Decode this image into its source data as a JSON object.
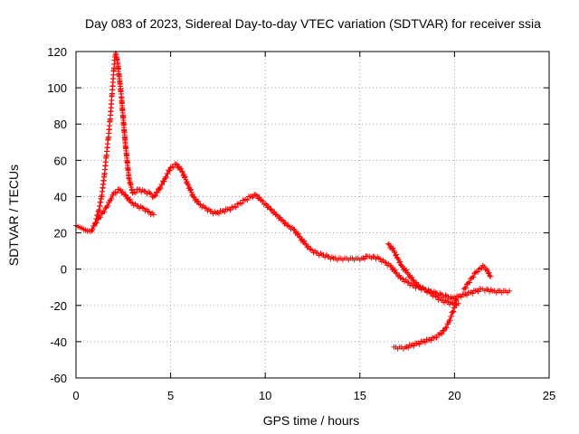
{
  "chart_data": {
    "type": "scatter",
    "title": "Day 083 of 2023, Sidereal Day-to-day VTEC variation (SDTVAR) for receiver ssia",
    "xlabel": "GPS time / hours",
    "ylabel": "SDTVAR / TECUs",
    "xlim": [
      0,
      25
    ],
    "ylim": [
      -60,
      120
    ],
    "xticks": [
      0,
      5,
      10,
      15,
      20,
      25
    ],
    "yticks": [
      -60,
      -40,
      -20,
      0,
      20,
      40,
      60,
      80,
      100,
      120
    ],
    "grid": true,
    "marker": "+",
    "series": [
      {
        "name": "main-trace",
        "color": "#ff0000",
        "x": [
          0.0,
          0.2,
          0.4,
          0.6,
          0.8,
          1.0,
          1.2,
          1.35,
          1.5,
          1.6,
          1.7,
          1.8,
          1.9,
          2.0,
          2.05,
          2.1,
          2.2,
          2.4,
          2.6,
          2.8,
          3.0,
          3.3,
          3.6,
          3.9,
          4.1,
          4.4,
          4.7,
          5.0,
          5.3,
          5.6,
          5.9,
          6.2,
          6.5,
          6.8,
          7.1,
          7.4,
          7.7,
          8.0,
          8.3,
          8.6,
          8.9,
          9.2,
          9.5,
          9.8,
          10.0,
          10.3,
          10.6,
          10.9,
          11.2,
          11.5,
          11.8,
          12.1,
          12.4,
          12.7,
          13.0,
          13.3,
          13.6,
          13.9,
          14.2,
          14.5,
          14.8,
          15.1,
          15.4,
          15.7,
          16.0,
          16.3,
          16.6,
          16.9,
          17.2,
          17.5,
          17.8,
          18.1,
          18.4,
          18.7,
          19.0,
          19.3,
          19.6,
          19.9,
          20.2,
          20.5,
          20.8,
          21.1,
          21.4,
          21.7,
          22.0,
          22.3,
          22.6,
          22.9
        ],
        "y": [
          24,
          23,
          22,
          21,
          21,
          25,
          32,
          40,
          52,
          62,
          72,
          82,
          96,
          110,
          117,
          119,
          114,
          95,
          70,
          50,
          42,
          44,
          43,
          42,
          40,
          44,
          50,
          56,
          58,
          54,
          47,
          40,
          36,
          34,
          32,
          31,
          32,
          33,
          34,
          36,
          38,
          40,
          41,
          38,
          36,
          33,
          30,
          27,
          24,
          22,
          18,
          14,
          11,
          9,
          8,
          7,
          6,
          6,
          6,
          6,
          6,
          6,
          7,
          7,
          6,
          4,
          2,
          -2,
          -5,
          -7,
          -9,
          -10,
          -11,
          -12,
          -13,
          -14,
          -15,
          -16,
          -15,
          -14,
          -13,
          -12,
          -11,
          -11,
          -12,
          -12,
          -12,
          -12
        ]
      },
      {
        "name": "secondary-trace",
        "color": "#ff0000",
        "x": [
          0.8,
          1.0,
          1.2,
          1.4,
          1.6,
          1.8,
          2.0,
          2.3,
          2.6,
          2.9,
          3.2,
          3.5,
          3.8,
          4.1
        ],
        "y": [
          21,
          25,
          28,
          31,
          34,
          38,
          42,
          44,
          41,
          37,
          35,
          34,
          32,
          30
        ]
      },
      {
        "name": "lower-trace",
        "color": "#ff0000",
        "x": [
          16.8,
          17.1,
          17.4,
          17.7,
          18.0,
          18.3,
          18.6,
          18.9,
          19.2,
          19.5,
          19.7,
          19.9,
          20.1
        ],
        "y": [
          -43,
          -43,
          -43,
          -42,
          -41,
          -40,
          -39,
          -38,
          -36,
          -33,
          -29,
          -24,
          -17
        ]
      },
      {
        "name": "upper-branch",
        "color": "#ff0000",
        "x": [
          16.5,
          16.8,
          17.0,
          17.2,
          17.5,
          17.8,
          18.1,
          18.4,
          18.7,
          19.0,
          19.3,
          19.6,
          19.9,
          20.2
        ],
        "y": [
          14,
          10,
          6,
          2,
          -2,
          -6,
          -9,
          -11,
          -13,
          -15,
          -17,
          -18,
          -19,
          -19
        ]
      },
      {
        "name": "late-branch",
        "color": "#ff0000",
        "x": [
          20.5,
          20.7,
          20.9,
          21.1,
          21.3,
          21.5,
          21.7,
          21.9
        ],
        "y": [
          -11,
          -8,
          -5,
          -2,
          0,
          2,
          0,
          -4
        ]
      }
    ]
  }
}
